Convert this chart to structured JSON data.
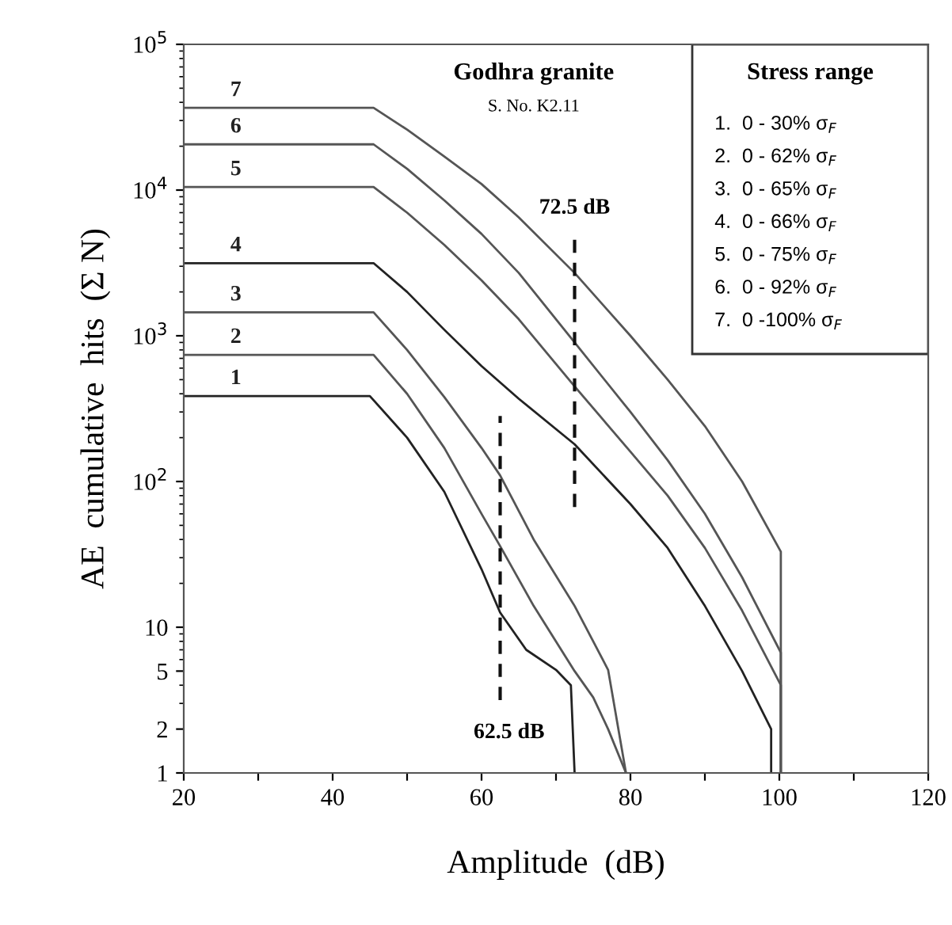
{
  "chart_data": {
    "type": "line",
    "title": "Godhra granite",
    "subtitle": "S. No. K2.11",
    "xlabel": "Amplitude  (dB)",
    "ylabel": "AE  cumulative  hits  (Σ N)",
    "legend_title": "Stress range",
    "log": "y",
    "grid": false,
    "marker": "none",
    "line_style": "solid",
    "xlim": [
      20,
      120
    ],
    "xticks": [
      20,
      {
        "value": 30,
        "label": null
      },
      40,
      {
        "value": 50,
        "label": null
      },
      60,
      {
        "value": 70,
        "label": null
      },
      80,
      {
        "value": 90,
        "label": null
      },
      100,
      {
        "value": 110,
        "label": null
      },
      120
    ],
    "ylim": [
      1,
      100000
    ],
    "yticks": [
      1,
      2,
      5,
      10,
      {
        "value": 100,
        "label": "10$^{2}$"
      },
      {
        "value": 1000,
        "label": "10$^{3}$"
      },
      {
        "value": 10000,
        "label": "10$^{4}$"
      },
      {
        "value": 100000,
        "label": "10$^{5}$"
      }
    ],
    "series": [
      {
        "name": "1",
        "color": "#222222",
        "x": [
          20,
          45,
          50,
          55,
          60,
          62.5,
          66,
          70,
          72,
          72.5
        ],
        "values": [
          386,
          386,
          200,
          85,
          25,
          12.6,
          7,
          5.1,
          4,
          1
        ]
      },
      {
        "name": "2",
        "color": "#555555",
        "x": [
          20,
          45.5,
          50,
          55,
          60,
          62.5,
          67,
          72.5,
          75,
          77,
          79.4
        ],
        "values": [
          740,
          740,
          400,
          170,
          60,
          36,
          14,
          5,
          3.3,
          2,
          1
        ]
      },
      {
        "name": "3",
        "color": "#555555",
        "x": [
          20,
          45.5,
          50,
          55,
          60,
          62.5,
          67,
          72.5,
          75,
          77,
          79.4
        ],
        "values": [
          1450,
          1450,
          800,
          380,
          170,
          110,
          40,
          14,
          8,
          5.1,
          1
        ]
      },
      {
        "name": "4",
        "color": "#222222",
        "x": [
          20,
          45.5,
          50,
          55,
          60,
          65,
          72.5,
          80,
          85,
          90,
          95,
          98.9,
          98.9
        ],
        "values": [
          3150,
          3150,
          2000,
          1100,
          620,
          370,
          180,
          70,
          35,
          14,
          5,
          2,
          1
        ]
      },
      {
        "name": "5",
        "color": "#555555",
        "x": [
          20,
          45.5,
          50,
          55,
          60,
          65,
          72.5,
          80,
          85,
          90,
          95,
          100.2,
          100.2
        ],
        "values": [
          10500,
          10500,
          7000,
          4200,
          2400,
          1300,
          450,
          160,
          80,
          35,
          13,
          4,
          1
        ]
      },
      {
        "name": "6",
        "color": "#555555",
        "x": [
          20,
          45.5,
          50,
          55,
          60,
          65,
          72.5,
          80,
          85,
          90,
          95,
          100.2,
          100.2
        ],
        "values": [
          20600,
          20600,
          14000,
          8500,
          5000,
          2700,
          900,
          300,
          140,
          60,
          22,
          6.7,
          1
        ]
      },
      {
        "name": "7",
        "color": "#555555",
        "x": [
          20,
          45.5,
          50,
          55,
          60,
          65,
          72.5,
          80,
          85,
          90,
          95,
          100.2,
          100.2
        ],
        "values": [
          36700,
          36700,
          26000,
          17000,
          11000,
          6500,
          2700,
          1000,
          500,
          240,
          100,
          33,
          1
        ]
      }
    ],
    "ref_lines": [
      {
        "axis": "x",
        "value": 72.5,
        "label": "72.5 dB",
        "color": "#111111",
        "line_style": "dashed"
      },
      {
        "axis": "x",
        "value": 62.5,
        "label": "62.5 dB",
        "color": "#111111",
        "line_style": "dashed"
      }
    ],
    "annotations": [
      "1.  0 - 30% σ$_{F}$",
      "2.  0 - 62% σ$_{F}$",
      "3.  0 - 65% σ$_{F}$",
      "4.  0 - 66% σ$_{F}$",
      "5.  0 - 75% σ$_{F}$",
      "6.  0 - 92% σ$_{F}$",
      "7.  0 -100% σ$_{F}$"
    ]
  }
}
